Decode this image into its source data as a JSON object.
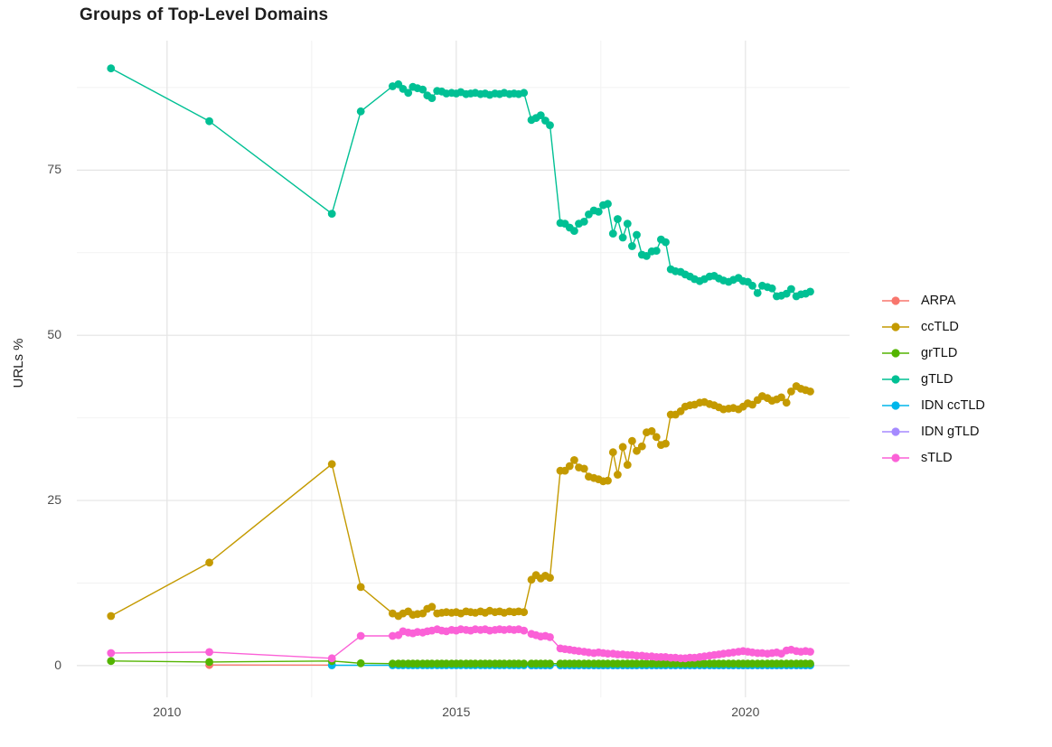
{
  "chart_data": {
    "type": "line",
    "title": "Groups of Top-Level Domains",
    "xlabel": "",
    "ylabel": "URLs %",
    "legend_position": "right",
    "grid": "on",
    "x_ticks": {
      "values": [
        2010,
        2015,
        2020
      ],
      "labels": [
        "2010",
        "2015",
        "2020"
      ]
    },
    "y_ticks": {
      "values": [
        0,
        25,
        50,
        75
      ],
      "labels": [
        "0",
        "25",
        "50",
        "75"
      ]
    },
    "x_minor_gridlines": [
      2012.5,
      2017.5
    ],
    "y_minor_gridlines": [
      12.5,
      37.5,
      62.5,
      87.5
    ],
    "xlim": [
      2008.44,
      2021.8
    ],
    "ylim": [
      -4.8,
      94.6
    ],
    "colors": {
      "background": "#ffffff",
      "grid_major": "#e4e4e4",
      "grid_minor": "#f2f2f2",
      "tick_label": "#4d4d4d",
      "title": "#1e1e1e",
      "axis_title": "#1e1e1e",
      "legend_label": "#111111"
    },
    "shared_x": {
      "main": [
        2009.03,
        2010.73,
        2012.85,
        2013.35,
        2013.9,
        2014.0,
        2014.08,
        2014.17,
        2014.25,
        2014.33,
        2014.42,
        2014.5,
        2014.58,
        2014.67,
        2014.75,
        2014.83,
        2014.92,
        2015.0,
        2015.08,
        2015.17,
        2015.25,
        2015.33,
        2015.42,
        2015.5,
        2015.58,
        2015.67,
        2015.75,
        2015.83,
        2015.92,
        2016.0,
        2016.08,
        2016.17,
        2016.3,
        2016.38,
        2016.46,
        2016.54,
        2016.62,
        2016.8,
        2016.88,
        2016.96,
        2017.04,
        2017.12,
        2017.21,
        2017.29,
        2017.38,
        2017.46,
        2017.54,
        2017.62,
        2017.71,
        2017.79,
        2017.88,
        2017.96,
        2018.04,
        2018.12,
        2018.21,
        2018.29,
        2018.38,
        2018.46,
        2018.54,
        2018.62,
        2018.71,
        2018.79,
        2018.88,
        2018.96,
        2019.04,
        2019.12,
        2019.21,
        2019.29,
        2019.38,
        2019.46,
        2019.54,
        2019.62,
        2019.71,
        2019.79,
        2019.88,
        2019.96,
        2020.04,
        2020.12,
        2020.21,
        2020.29,
        2020.38,
        2020.46,
        2020.54,
        2020.62,
        2020.71,
        2020.79,
        2020.88,
        2020.96,
        2021.04,
        2021.12
      ],
      "idn_cc": [
        2012.85,
        2013.9,
        2014.0,
        2014.08,
        2014.17,
        2014.25,
        2014.33,
        2014.42,
        2014.5,
        2014.58,
        2014.67,
        2014.75,
        2014.83,
        2014.92,
        2015.0,
        2015.08,
        2015.17,
        2015.25,
        2015.33,
        2015.42,
        2015.5,
        2015.58,
        2015.67,
        2015.75,
        2015.83,
        2015.92,
        2016.0,
        2016.08,
        2016.17,
        2016.3,
        2016.38,
        2016.46,
        2016.54,
        2016.62,
        2016.8,
        2016.88,
        2016.96,
        2017.04,
        2017.12,
        2017.21,
        2017.29,
        2017.38,
        2017.46,
        2017.54,
        2017.62,
        2017.71,
        2017.79,
        2017.88,
        2017.96,
        2018.04,
        2018.12,
        2018.21,
        2018.29,
        2018.38,
        2018.46,
        2018.54,
        2018.62,
        2018.71,
        2018.79,
        2018.88,
        2018.96,
        2019.04,
        2019.12,
        2019.21,
        2019.29,
        2019.38,
        2019.46,
        2019.54,
        2019.62,
        2019.71,
        2019.79,
        2019.88,
        2019.96,
        2020.04,
        2020.12,
        2020.21,
        2020.29,
        2020.38,
        2020.46,
        2020.54,
        2020.62,
        2020.71,
        2020.79,
        2020.88,
        2020.96,
        2021.04,
        2021.12
      ],
      "idn_g": [
        2016.3,
        2016.38,
        2016.46,
        2016.54,
        2016.62,
        2016.8,
        2016.88,
        2016.96,
        2017.04,
        2017.12,
        2017.21,
        2017.29,
        2017.38,
        2017.46,
        2017.54,
        2017.62,
        2017.71,
        2017.79,
        2017.88,
        2017.96,
        2018.04,
        2018.12,
        2018.21,
        2018.29,
        2018.38,
        2018.46,
        2018.54,
        2018.62,
        2018.71,
        2018.79,
        2018.88,
        2018.96,
        2019.04,
        2019.12,
        2019.21,
        2019.29,
        2019.38,
        2019.46,
        2019.54,
        2019.62,
        2019.71,
        2019.79,
        2019.88,
        2019.96,
        2020.04,
        2020.12,
        2020.21,
        2020.29,
        2020.38,
        2020.46,
        2020.54,
        2020.62,
        2020.71,
        2020.79,
        2020.88,
        2020.96,
        2021.04,
        2021.12
      ],
      "arpa": [
        2010.73,
        2012.85
      ]
    },
    "series": [
      {
        "name": "ARPA",
        "color": "#F8766D",
        "z": 0,
        "x": "arpa",
        "y": [
          0.1,
          0.08
        ]
      },
      {
        "name": "ccTLD",
        "color": "#C49A00",
        "z": 4,
        "x": "main",
        "y": [
          7.5,
          15.6,
          30.5,
          11.9,
          7.9,
          7.5,
          7.9,
          8.2,
          7.7,
          7.8,
          7.9,
          8.6,
          8.9,
          7.9,
          8.0,
          8.1,
          8.0,
          8.1,
          7.9,
          8.2,
          8.1,
          8.0,
          8.2,
          8.0,
          8.3,
          8.1,
          8.2,
          8.0,
          8.2,
          8.1,
          8.2,
          8.1,
          13.0,
          13.7,
          13.2,
          13.6,
          13.3,
          29.5,
          29.5,
          30.2,
          31.1,
          30.0,
          29.8,
          28.6,
          28.4,
          28.2,
          27.9,
          28.0,
          32.3,
          28.9,
          33.1,
          30.4,
          34.0,
          32.5,
          33.2,
          35.3,
          35.5,
          34.6,
          33.4,
          33.6,
          38.0,
          38.0,
          38.5,
          39.2,
          39.4,
          39.5,
          39.8,
          39.9,
          39.6,
          39.4,
          39.1,
          38.8,
          38.9,
          39.0,
          38.8,
          39.2,
          39.7,
          39.5,
          40.2,
          40.8,
          40.5,
          40.1,
          40.3,
          40.6,
          39.8,
          41.5,
          42.3,
          41.9,
          41.7,
          41.5
        ]
      },
      {
        "name": "grTLD",
        "color": "#53B400",
        "z": 3,
        "x": "main",
        "y": [
          0.7,
          0.55,
          0.7,
          0.35,
          0.3,
          0.3,
          0.3,
          0.3,
          0.3,
          0.3,
          0.3,
          0.3,
          0.3,
          0.3,
          0.3,
          0.3,
          0.3,
          0.3,
          0.3,
          0.3,
          0.3,
          0.3,
          0.3,
          0.3,
          0.3,
          0.3,
          0.3,
          0.3,
          0.3,
          0.3,
          0.3,
          0.3,
          0.3,
          0.3,
          0.3,
          0.3,
          0.3,
          0.3,
          0.3,
          0.3,
          0.3,
          0.3,
          0.3,
          0.3,
          0.3,
          0.3,
          0.3,
          0.3,
          0.3,
          0.3,
          0.3,
          0.3,
          0.3,
          0.3,
          0.3,
          0.3,
          0.3,
          0.3,
          0.3,
          0.3,
          0.3,
          0.3,
          0.3,
          0.3,
          0.3,
          0.3,
          0.3,
          0.3,
          0.3,
          0.3,
          0.3,
          0.3,
          0.3,
          0.3,
          0.3,
          0.3,
          0.3,
          0.3,
          0.3,
          0.3,
          0.3,
          0.3,
          0.3,
          0.3,
          0.3,
          0.3,
          0.3,
          0.3,
          0.3,
          0.3
        ]
      },
      {
        "name": "gTLD",
        "color": "#00C094",
        "z": 5,
        "x": "main",
        "y": [
          90.4,
          82.4,
          68.4,
          83.9,
          87.7,
          88.0,
          87.3,
          86.7,
          87.6,
          87.4,
          87.2,
          86.3,
          85.9,
          87.0,
          86.9,
          86.6,
          86.7,
          86.6,
          86.8,
          86.5,
          86.6,
          86.7,
          86.5,
          86.6,
          86.4,
          86.6,
          86.5,
          86.7,
          86.5,
          86.6,
          86.5,
          86.7,
          82.6,
          82.9,
          83.3,
          82.5,
          81.8,
          67.0,
          66.9,
          66.3,
          65.8,
          66.9,
          67.2,
          68.3,
          68.9,
          68.7,
          69.7,
          69.9,
          65.4,
          67.6,
          64.8,
          66.9,
          63.5,
          65.2,
          62.2,
          62.0,
          62.7,
          62.8,
          64.5,
          64.1,
          60.0,
          59.7,
          59.6,
          59.2,
          58.9,
          58.5,
          58.2,
          58.5,
          58.9,
          59.0,
          58.6,
          58.3,
          58.1,
          58.4,
          58.7,
          58.2,
          58.1,
          57.5,
          56.4,
          57.5,
          57.3,
          57.1,
          55.9,
          56.0,
          56.3,
          57.0,
          55.9,
          56.2,
          56.3,
          56.6
        ]
      },
      {
        "name": "IDN ccTLD",
        "color": "#00B6EB",
        "z": 2,
        "x": "idn_cc",
        "y": [
          0.05,
          0.05,
          0.05,
          0.05,
          0.05,
          0.05,
          0.05,
          0.05,
          0.05,
          0.05,
          0.05,
          0.05,
          0.05,
          0.05,
          0.05,
          0.05,
          0.05,
          0.05,
          0.05,
          0.05,
          0.05,
          0.05,
          0.05,
          0.05,
          0.05,
          0.05,
          0.05,
          0.05,
          0.05,
          0.05,
          0.05,
          0.05,
          0.05,
          0.05,
          0.05,
          0.05,
          0.05,
          0.05,
          0.05,
          0.05,
          0.05,
          0.05,
          0.05,
          0.05,
          0.05,
          0.05,
          0.05,
          0.05,
          0.05,
          0.05,
          0.05,
          0.05,
          0.05,
          0.05,
          0.05,
          0.05,
          0.05,
          0.05,
          0.05,
          0.05,
          0.05,
          0.05,
          0.05,
          0.05,
          0.05,
          0.05,
          0.05,
          0.05,
          0.05,
          0.05,
          0.05,
          0.05,
          0.05,
          0.05,
          0.05,
          0.05,
          0.05,
          0.05,
          0.05,
          0.05,
          0.05,
          0.05,
          0.05,
          0.05,
          0.05,
          0.05,
          0.05
        ]
      },
      {
        "name": "IDN gTLD",
        "color": "#A58AFF",
        "z": 1,
        "x": "idn_g",
        "y": [
          0.02,
          0.02,
          0.02,
          0.02,
          0.02,
          0.02,
          0.02,
          0.02,
          0.02,
          0.02,
          0.02,
          0.02,
          0.02,
          0.02,
          0.02,
          0.02,
          0.02,
          0.02,
          0.02,
          0.02,
          0.02,
          0.02,
          0.02,
          0.02,
          0.02,
          0.02,
          0.02,
          0.02,
          0.02,
          0.02,
          0.02,
          0.02,
          0.02,
          0.02,
          0.02,
          0.02,
          0.02,
          0.02,
          0.02,
          0.02,
          0.02,
          0.02,
          0.02,
          0.02,
          0.02,
          0.02,
          0.02,
          0.02,
          0.02,
          0.02,
          0.02,
          0.02,
          0.02,
          0.02,
          0.02,
          0.02,
          0.02,
          0.02
        ]
      },
      {
        "name": "sTLD",
        "color": "#FB61D7",
        "z": 6,
        "x": "main",
        "y": [
          1.9,
          2.05,
          1.1,
          4.5,
          4.5,
          4.6,
          5.2,
          5.0,
          4.9,
          5.1,
          5.0,
          5.2,
          5.3,
          5.5,
          5.3,
          5.2,
          5.4,
          5.3,
          5.5,
          5.4,
          5.3,
          5.5,
          5.4,
          5.5,
          5.3,
          5.4,
          5.5,
          5.4,
          5.5,
          5.4,
          5.5,
          5.3,
          4.8,
          4.6,
          4.4,
          4.5,
          4.3,
          2.6,
          2.5,
          2.4,
          2.3,
          2.2,
          2.1,
          2.0,
          1.9,
          2.0,
          1.9,
          1.8,
          1.8,
          1.7,
          1.7,
          1.6,
          1.6,
          1.5,
          1.5,
          1.4,
          1.4,
          1.3,
          1.3,
          1.3,
          1.2,
          1.2,
          1.1,
          1.1,
          1.2,
          1.2,
          1.3,
          1.4,
          1.5,
          1.6,
          1.7,
          1.8,
          1.9,
          2.0,
          2.1,
          2.2,
          2.1,
          2.0,
          1.9,
          1.9,
          1.8,
          1.9,
          2.0,
          1.8,
          2.3,
          2.4,
          2.2,
          2.1,
          2.2,
          2.1
        ]
      }
    ]
  }
}
